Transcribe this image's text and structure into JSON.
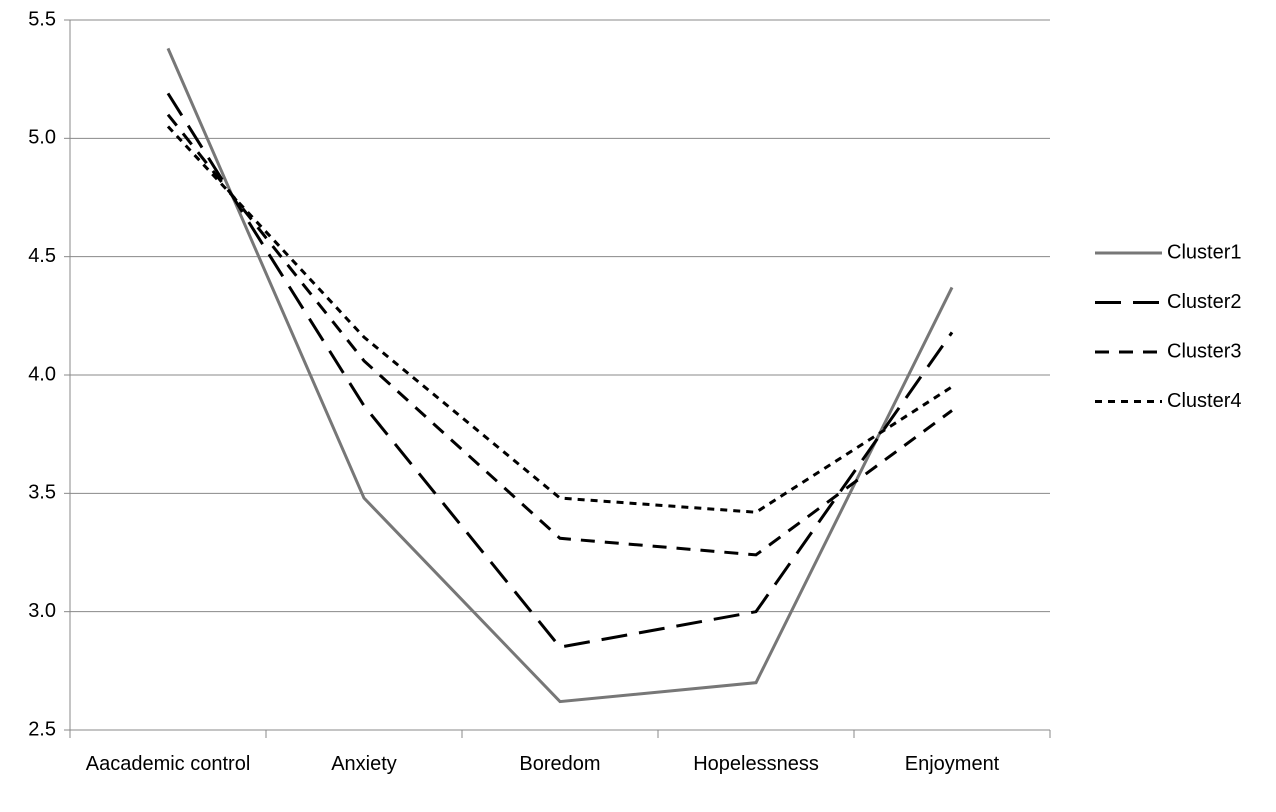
{
  "chart_data": {
    "type": "line",
    "categories": [
      "Aacademic control",
      "Anxiety",
      "Boredom",
      "Hopelessness",
      "Enjoyment"
    ],
    "series": [
      {
        "name": "Cluster1",
        "color": "#777777",
        "values": [
          5.38,
          3.48,
          2.62,
          2.7,
          4.37
        ]
      },
      {
        "name": "Cluster2",
        "color": "#000000",
        "values": [
          5.19,
          3.87,
          2.85,
          3.0,
          4.18
        ]
      },
      {
        "name": "Cluster3",
        "color": "#000000",
        "values": [
          5.1,
          4.06,
          3.31,
          3.24,
          3.85
        ]
      },
      {
        "name": "Cluster4",
        "color": "#000000",
        "values": [
          5.05,
          4.16,
          3.48,
          3.42,
          3.95
        ]
      }
    ],
    "ylim": [
      2.5,
      5.5
    ],
    "yticks": [
      2.5,
      {
        "value": 3,
        "label": "3.0"
      },
      3.5,
      {
        "value": 4,
        "label": "4.0"
      },
      4.5,
      {
        "value": 5,
        "label": "5.0"
      },
      5.5
    ],
    "grid": true,
    "legend": "right"
  }
}
